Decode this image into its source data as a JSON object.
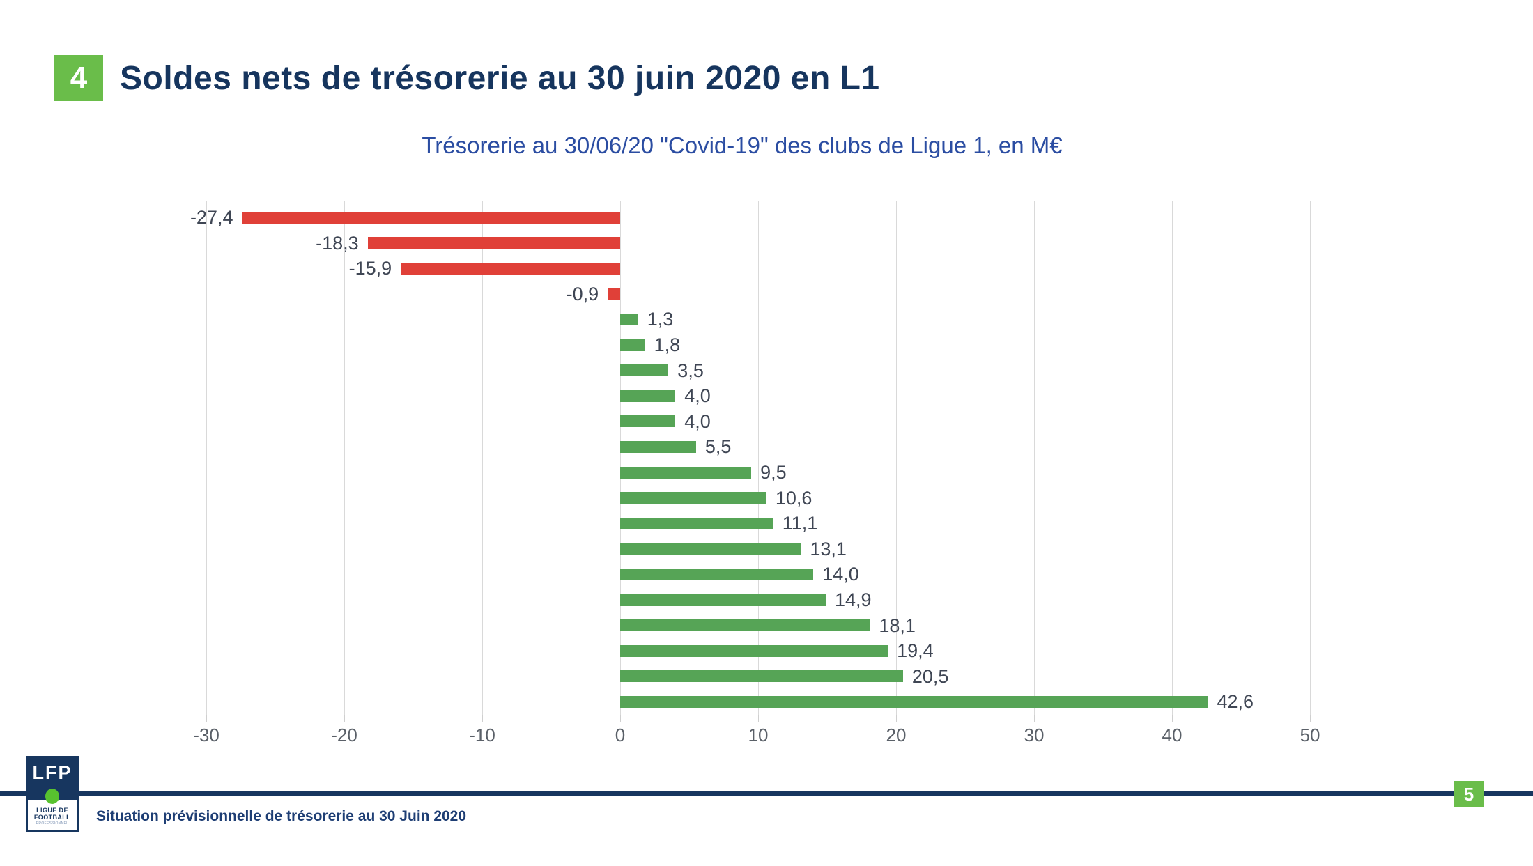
{
  "page": {
    "section_number": "4",
    "title": "Soldes nets de trésorerie au 30 juin 2020 en L1"
  },
  "chart_data": {
    "type": "bar",
    "orientation": "horizontal",
    "title": "Trésorerie au 30/06/20 \"Covid-19\" des clubs de Ligue 1, en M€",
    "unit": "M€",
    "values": [
      -27.4,
      -18.3,
      -15.9,
      -0.9,
      1.3,
      1.8,
      3.5,
      4.0,
      4.0,
      5.5,
      9.5,
      10.6,
      11.1,
      13.1,
      14.0,
      14.9,
      18.1,
      19.4,
      20.5,
      42.6
    ],
    "labels": [
      "-27,4",
      "-18,3",
      "-15,9",
      "-0,9",
      "1,3",
      "1,8",
      "3,5",
      "4,0",
      "4,0",
      "5,5",
      "9,5",
      "10,6",
      "11,1",
      "13,1",
      "14,0",
      "14,9",
      "18,1",
      "19,4",
      "20,5",
      "42,6"
    ],
    "x_ticks": [
      -30,
      -20,
      -10,
      0,
      10,
      20,
      30,
      40,
      50
    ],
    "x_tick_labels": [
      "-30",
      "-20",
      "-10",
      "0",
      "10",
      "20",
      "30",
      "40",
      "50"
    ],
    "xlim": [
      -33,
      53
    ],
    "grid": true,
    "legend": "none",
    "negative_color": "#e04038",
    "positive_color": "#56a456"
  },
  "footer": {
    "logo_text": "LFP",
    "logo_subtext_line1": "LIGUE DE",
    "logo_subtext_line2": "FOOTBALL",
    "logo_subtext_line3": "PROFESSIONNEL",
    "caption": "Situation prévisionnelle de trésorerie au 30 Juin 2020",
    "page_number": "5"
  },
  "colors": {
    "accent_green": "#6abd4a",
    "heading_navy": "#16355e",
    "chart_title_blue": "#2b4da2",
    "bar_negative": "#e04038",
    "bar_positive": "#56a456",
    "gridline": "#d9d9d9",
    "divider_navy": "#17365f",
    "logo_dot_green": "#58c22f"
  }
}
